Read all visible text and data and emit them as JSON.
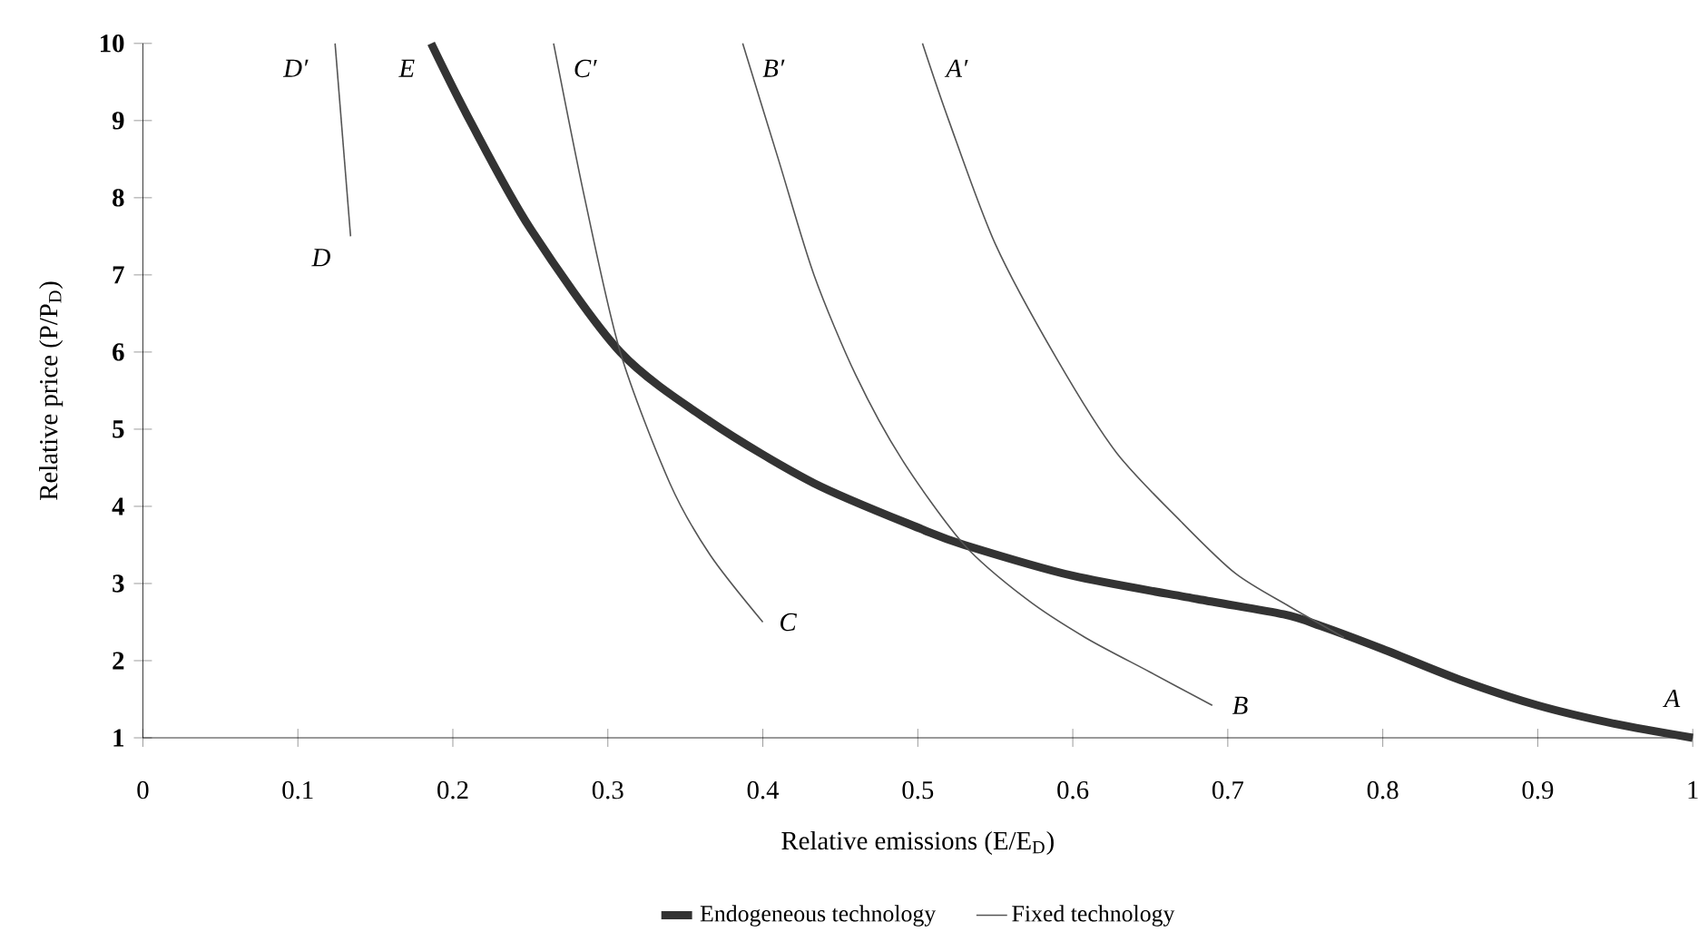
{
  "chart_data": {
    "type": "line",
    "xlabel": "Relative emissions (E/E$_{D}$)",
    "ylabel": "Relative price (P/P$_{D}$)",
    "xlim": [
      0,
      1
    ],
    "ylim": [
      1,
      10
    ],
    "xticks": [
      0,
      0.1,
      0.2,
      0.3,
      0.4,
      0.5,
      0.6,
      0.7,
      0.8,
      0.9,
      1
    ],
    "yticks": [
      1,
      2,
      3,
      4,
      5,
      6,
      7,
      8,
      9,
      10
    ],
    "grid": false,
    "legend": "bottom",
    "marker": "none",
    "line_style": "solid",
    "series": [
      {
        "name": "Endogeneous technology",
        "color": "#333333",
        "x": [
          0.186,
          0.211,
          0.25,
          0.308,
          0.366,
          0.433,
          0.503,
          0.53,
          0.6,
          0.68,
          0.736,
          0.76,
          0.8,
          0.85,
          0.9,
          0.95,
          1.0
        ],
        "values": [
          10,
          9.0,
          7.6,
          6.0,
          5.1,
          4.3,
          3.7,
          3.5,
          3.1,
          2.8,
          2.6,
          2.45,
          2.15,
          1.75,
          1.42,
          1.18,
          1.0
        ]
      },
      {
        "name": "Fixed technology",
        "color": "#555555",
        "x": [
          0.503,
          0.52,
          0.55,
          0.59,
          0.628,
          0.67,
          0.705,
          0.74,
          0.775
        ],
        "values": [
          10,
          9.0,
          7.4,
          5.9,
          4.7,
          3.8,
          3.13,
          2.7,
          2.3
        ]
      },
      {
        "color": "#555555",
        "x": [
          0.387,
          0.41,
          0.433,
          0.46,
          0.49,
          0.53,
          0.57,
          0.608,
          0.65,
          0.69
        ],
        "values": [
          10,
          8.5,
          7.0,
          5.7,
          4.6,
          3.5,
          2.8,
          2.3,
          1.85,
          1.42
        ]
      },
      {
        "color": "#555555",
        "x": [
          0.265,
          0.285,
          0.308,
          0.34,
          0.366,
          0.4
        ],
        "values": [
          10,
          8.0,
          6.0,
          4.3,
          3.37,
          2.5
        ]
      },
      {
        "color": "#555555",
        "x": [
          0.124,
          0.134
        ],
        "values": [
          10,
          7.5
        ]
      }
    ],
    "annotations": [
      {
        "text": "A′",
        "x": 0.503,
        "y": 10
      },
      {
        "text": "A",
        "x": 1.0,
        "y": 1.0
      },
      {
        "text": "B′",
        "x": 0.387,
        "y": 10
      },
      {
        "text": "B",
        "x": 0.69,
        "y": 1.42
      },
      {
        "text": "C′",
        "x": 0.265,
        "y": 10
      },
      {
        "text": "C",
        "x": 0.4,
        "y": 2.5
      },
      {
        "text": "D′",
        "x": 0.124,
        "y": 10
      },
      {
        "text": "D",
        "x": 0.134,
        "y": 7.5
      },
      {
        "text": "E",
        "x": 0.186,
        "y": 10
      }
    ]
  }
}
